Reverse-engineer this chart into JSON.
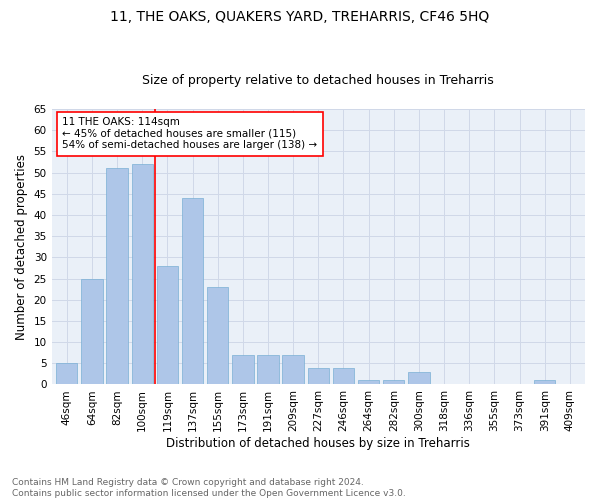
{
  "title1": "11, THE OAKS, QUAKERS YARD, TREHARRIS, CF46 5HQ",
  "title2": "Size of property relative to detached houses in Treharris",
  "xlabel": "Distribution of detached houses by size in Treharris",
  "ylabel": "Number of detached properties",
  "categories": [
    "46sqm",
    "64sqm",
    "82sqm",
    "100sqm",
    "119sqm",
    "137sqm",
    "155sqm",
    "173sqm",
    "191sqm",
    "209sqm",
    "227sqm",
    "246sqm",
    "264sqm",
    "282sqm",
    "300sqm",
    "318sqm",
    "336sqm",
    "355sqm",
    "373sqm",
    "391sqm",
    "409sqm"
  ],
  "values": [
    5,
    25,
    51,
    52,
    28,
    44,
    23,
    7,
    7,
    7,
    4,
    4,
    1,
    1,
    3,
    0,
    0,
    0,
    0,
    1,
    0
  ],
  "bar_color": "#aec6e8",
  "bar_edge_color": "#7aafd4",
  "annotation_lines": [
    "11 THE OAKS: 114sqm",
    "← 45% of detached houses are smaller (115)",
    "54% of semi-detached houses are larger (138) →"
  ],
  "annotation_box_color": "white",
  "annotation_box_edge_color": "red",
  "vline_color": "red",
  "ylim": [
    0,
    65
  ],
  "yticks": [
    0,
    5,
    10,
    15,
    20,
    25,
    30,
    35,
    40,
    45,
    50,
    55,
    60,
    65
  ],
  "grid_color": "#d0d8e8",
  "bg_color": "#eaf0f8",
  "footnote": "Contains HM Land Registry data © Crown copyright and database right 2024.\nContains public sector information licensed under the Open Government Licence v3.0.",
  "title1_fontsize": 10,
  "title2_fontsize": 9,
  "xlabel_fontsize": 8.5,
  "ylabel_fontsize": 8.5,
  "tick_fontsize": 7.5,
  "footnote_fontsize": 6.5,
  "annotation_fontsize": 7.5
}
